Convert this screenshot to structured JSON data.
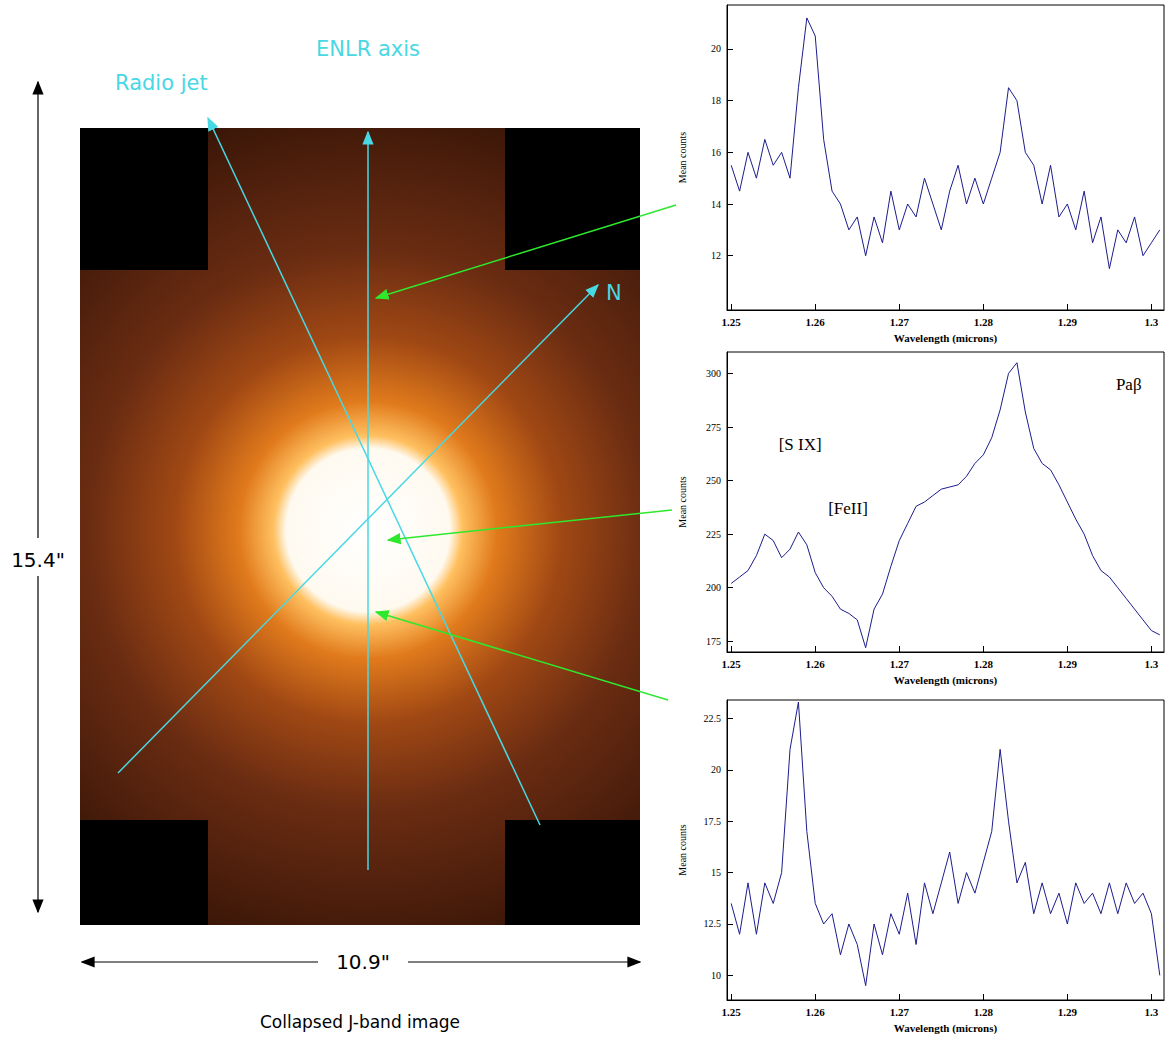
{
  "image_panel": {
    "caption": "Collapsed J-band image",
    "height_label": "15.4\"",
    "width_label": "10.9\"",
    "axes": [
      {
        "label": "Radio jet"
      },
      {
        "label": "ENLR axis"
      },
      {
        "label": "N"
      }
    ]
  },
  "chart_data": [
    {
      "type": "line",
      "x_label": "Wavelength (microns)",
      "y_label": "Mean counts",
      "grid": false,
      "xlim": [
        1.2495,
        1.3015
      ],
      "xticks": [
        1.25,
        1.26,
        1.27,
        1.28,
        1.29,
        1.3
      ],
      "ylim": [
        9.9,
        21.7
      ],
      "yticks": [
        12,
        14,
        16,
        18,
        20
      ],
      "x": [
        1.25,
        1.251,
        1.252,
        1.253,
        1.254,
        1.255,
        1.256,
        1.257,
        1.258,
        1.259,
        1.26,
        1.261,
        1.262,
        1.263,
        1.264,
        1.265,
        1.266,
        1.267,
        1.268,
        1.269,
        1.27,
        1.271,
        1.272,
        1.273,
        1.274,
        1.275,
        1.276,
        1.277,
        1.278,
        1.279,
        1.28,
        1.281,
        1.282,
        1.283,
        1.284,
        1.285,
        1.286,
        1.287,
        1.288,
        1.289,
        1.29,
        1.291,
        1.292,
        1.293,
        1.294,
        1.295,
        1.296,
        1.297,
        1.298,
        1.299,
        1.3,
        1.301
      ],
      "series": [
        {
          "color": "#1c1c8c",
          "values": [
            15.5,
            14.5,
            16.0,
            15.0,
            16.5,
            15.5,
            16.0,
            15.0,
            18.5,
            21.2,
            20.5,
            16.5,
            14.5,
            14.0,
            13.0,
            13.5,
            12.0,
            13.5,
            12.5,
            14.5,
            13.0,
            14.0,
            13.5,
            15.0,
            14.0,
            13.0,
            14.5,
            15.5,
            14.0,
            15.0,
            14.0,
            15.0,
            16.0,
            18.5,
            18.0,
            16.0,
            15.5,
            14.0,
            15.5,
            13.5,
            14.0,
            13.0,
            14.5,
            12.5,
            13.5,
            11.5,
            13.0,
            12.5,
            13.5,
            12.0,
            12.5,
            13.0
          ]
        }
      ]
    },
    {
      "type": "line",
      "x_label": "Wavelength (microns)",
      "y_label": "Mean counts",
      "grid": false,
      "xlim": [
        1.2495,
        1.3015
      ],
      "xticks": [
        1.25,
        1.26,
        1.27,
        1.28,
        1.29,
        1.3
      ],
      "ylim": [
        170,
        310
      ],
      "yticks": [
        175,
        200,
        225,
        250,
        275,
        300
      ],
      "x": [
        1.25,
        1.251,
        1.252,
        1.253,
        1.254,
        1.255,
        1.256,
        1.257,
        1.258,
        1.259,
        1.26,
        1.261,
        1.262,
        1.263,
        1.264,
        1.265,
        1.266,
        1.267,
        1.268,
        1.269,
        1.27,
        1.271,
        1.272,
        1.273,
        1.274,
        1.275,
        1.276,
        1.277,
        1.278,
        1.279,
        1.28,
        1.281,
        1.282,
        1.283,
        1.284,
        1.285,
        1.286,
        1.287,
        1.288,
        1.289,
        1.29,
        1.291,
        1.292,
        1.293,
        1.294,
        1.295,
        1.296,
        1.297,
        1.298,
        1.299,
        1.3,
        1.301
      ],
      "series": [
        {
          "color": "#1c1c8c",
          "values": [
            202,
            205,
            208,
            215,
            225,
            222,
            214,
            218,
            226,
            220,
            207,
            200,
            196,
            190,
            188,
            185,
            172,
            190,
            197,
            210,
            222,
            230,
            238,
            240,
            243,
            246,
            247,
            248,
            252,
            258,
            262,
            270,
            283,
            300,
            305,
            282,
            265,
            258,
            255,
            248,
            240,
            232,
            225,
            215,
            208,
            205,
            200,
            195,
            190,
            185,
            180,
            178
          ]
        }
      ],
      "annotations": [
        {
          "text": "[S IX]",
          "x": 1.2582,
          "y": 267
        },
        {
          "text": "[FeII]",
          "x": 1.2639,
          "y": 237
        },
        {
          "text": "Paβ",
          "x": 1.2973,
          "y": 295
        }
      ]
    },
    {
      "type": "line",
      "x_label": "Wavelength (microns)",
      "y_label": "Mean counts",
      "grid": false,
      "xlim": [
        1.2495,
        1.3015
      ],
      "xticks": [
        1.25,
        1.26,
        1.27,
        1.28,
        1.29,
        1.3
      ],
      "ylim": [
        8.8,
        23.4
      ],
      "yticks": [
        10,
        12.5,
        15,
        17.5,
        20,
        22.5
      ],
      "x": [
        1.25,
        1.251,
        1.252,
        1.253,
        1.254,
        1.255,
        1.256,
        1.257,
        1.258,
        1.259,
        1.26,
        1.261,
        1.262,
        1.263,
        1.264,
        1.265,
        1.266,
        1.267,
        1.268,
        1.269,
        1.27,
        1.271,
        1.272,
        1.273,
        1.274,
        1.275,
        1.276,
        1.277,
        1.278,
        1.279,
        1.28,
        1.281,
        1.282,
        1.283,
        1.284,
        1.285,
        1.286,
        1.287,
        1.288,
        1.289,
        1.29,
        1.291,
        1.292,
        1.293,
        1.294,
        1.295,
        1.296,
        1.297,
        1.298,
        1.299,
        1.3,
        1.301
      ],
      "series": [
        {
          "color": "#1c1c8c",
          "values": [
            13.5,
            12.0,
            14.5,
            12.0,
            14.5,
            13.5,
            15.0,
            21.0,
            23.3,
            17.0,
            13.5,
            12.5,
            13.0,
            11.0,
            12.5,
            11.5,
            9.5,
            12.5,
            11.0,
            13.0,
            12.0,
            14.0,
            11.5,
            14.5,
            13.0,
            14.5,
            16.0,
            13.5,
            15.0,
            14.0,
            15.5,
            17.0,
            21.0,
            17.5,
            14.5,
            15.5,
            13.0,
            14.5,
            13.0,
            14.0,
            12.5,
            14.5,
            13.5,
            14.0,
            13.0,
            14.5,
            13.0,
            14.5,
            13.5,
            14.0,
            13.0,
            10.0
          ]
        }
      ]
    }
  ]
}
